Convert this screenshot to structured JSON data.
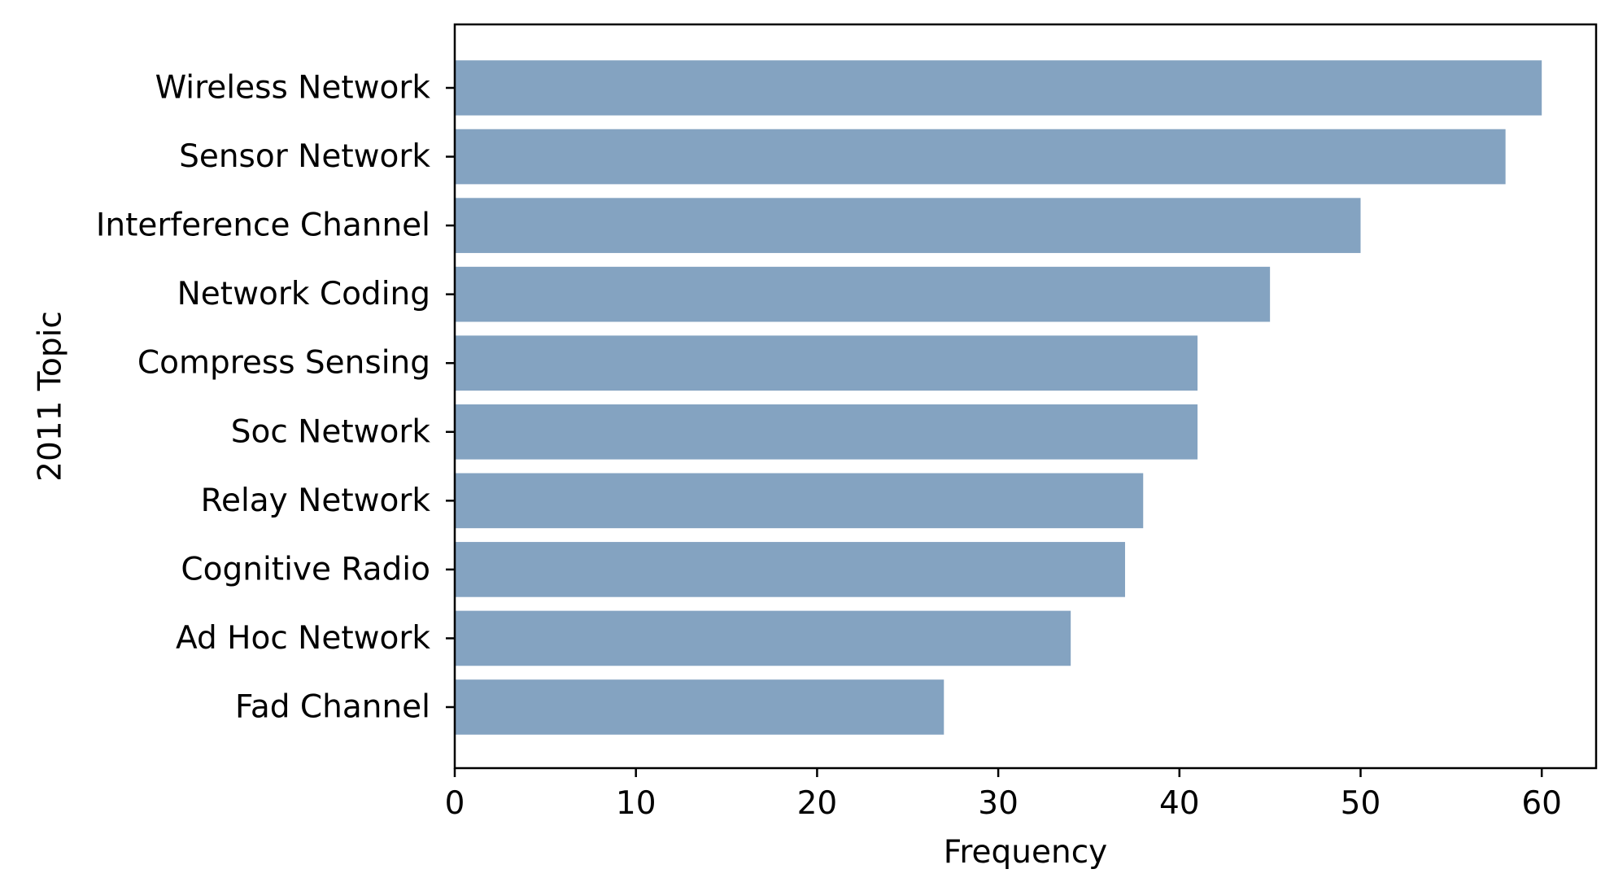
{
  "chart_data": {
    "type": "bar",
    "orientation": "horizontal",
    "categories": [
      "Wireless Network",
      "Sensor Network",
      "Interference Channel",
      "Network Coding",
      "Compress Sensing",
      "Soc Network",
      "Relay Network",
      "Cognitive Radio",
      "Ad Hoc Network",
      "Fad Channel"
    ],
    "values": [
      60,
      58,
      50,
      45,
      41,
      41,
      38,
      37,
      34,
      27
    ],
    "xlabel": "Frequency",
    "ylabel": "2011 Topic",
    "xlim": [
      0,
      63
    ],
    "xticks": [
      0,
      10,
      20,
      30,
      40,
      50,
      60
    ],
    "grid": false,
    "bar_color": "#84a3c1"
  }
}
